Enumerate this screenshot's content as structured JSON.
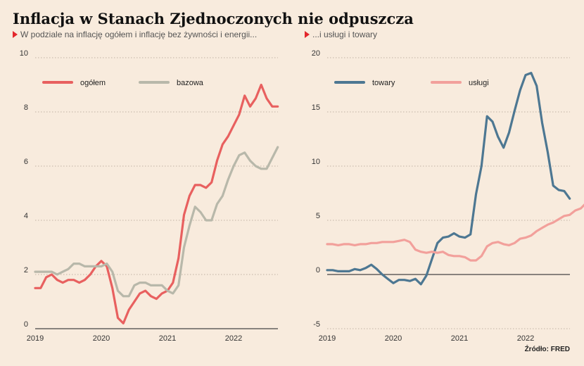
{
  "title": "Inflacja w Stanach Zjednoczonych nie odpuszcza",
  "subtitles": {
    "left": "W podziale na inflację ogółem i inflację bez żywności i energii...",
    "right": "...i usługi i towary"
  },
  "source": "Źródło: FRED",
  "chart_data": [
    {
      "type": "line",
      "ylim": [
        0,
        10
      ],
      "y_ticks": [
        "0",
        "2",
        "4",
        "6",
        "8",
        "10"
      ],
      "x_ticks": [
        {
          "label": "2019",
          "x": 2019.0
        },
        {
          "label": "2020",
          "x": 2020.0
        },
        {
          "label": "2021",
          "x": 2021.0
        },
        {
          "label": "2022",
          "x": 2022.0
        }
      ],
      "xlim": [
        2019.0,
        2022.67
      ],
      "grid": true,
      "legend": "top-left",
      "series": [
        {
          "name": "ogółem",
          "color": "#e8605f",
          "x_start": 2019.0,
          "step_months": 1,
          "values": [
            1.5,
            1.5,
            1.9,
            2.0,
            1.8,
            1.7,
            1.8,
            1.8,
            1.7,
            1.8,
            2.0,
            2.3,
            2.5,
            2.3,
            1.5,
            0.4,
            0.2,
            0.7,
            1.0,
            1.3,
            1.4,
            1.2,
            1.1,
            1.3,
            1.4,
            1.7,
            2.6,
            4.2,
            4.9,
            5.3,
            5.3,
            5.2,
            5.4,
            6.2,
            6.8,
            7.1,
            7.5,
            7.9,
            8.6,
            8.2,
            8.5,
            9.0,
            8.5,
            8.2,
            8.2
          ]
        },
        {
          "name": "bazowa",
          "color": "#b8b8aa",
          "x_start": 2019.0,
          "step_months": 1,
          "values": [
            2.1,
            2.1,
            2.1,
            2.1,
            2.0,
            2.1,
            2.2,
            2.4,
            2.4,
            2.3,
            2.3,
            2.3,
            2.3,
            2.4,
            2.1,
            1.4,
            1.2,
            1.2,
            1.6,
            1.7,
            1.7,
            1.6,
            1.6,
            1.6,
            1.4,
            1.3,
            1.6,
            3.0,
            3.8,
            4.5,
            4.3,
            4.0,
            4.0,
            4.6,
            4.9,
            5.5,
            6.0,
            6.4,
            6.5,
            6.2,
            6.0,
            5.9,
            5.9,
            6.3,
            6.7
          ]
        }
      ]
    },
    {
      "type": "line",
      "ylim": [
        -5,
        20
      ],
      "y_ticks": [
        "-5",
        "0",
        "5",
        "10",
        "15",
        "20"
      ],
      "x_ticks": [
        {
          "label": "2019",
          "x": 2019.0
        },
        {
          "label": "2020",
          "x": 2020.0
        },
        {
          "label": "2021",
          "x": 2021.0
        },
        {
          "label": "2022",
          "x": 2022.0
        }
      ],
      "xlim": [
        2019.0,
        2022.67
      ],
      "grid": true,
      "legend": "top-left",
      "series": [
        {
          "name": "towary",
          "color": "#4d7792",
          "x_start": 2019.0,
          "step_months": 1,
          "values": [
            0.4,
            0.4,
            0.3,
            0.3,
            0.3,
            0.5,
            0.4,
            0.6,
            0.9,
            0.5,
            0.0,
            -0.4,
            -0.8,
            -0.5,
            -0.5,
            -0.6,
            -0.4,
            -0.9,
            -0.1,
            1.4,
            2.9,
            3.4,
            3.5,
            3.8,
            3.5,
            3.4,
            3.7,
            7.4,
            10.0,
            14.6,
            14.1,
            12.7,
            11.7,
            13.1,
            15.1,
            17.0,
            18.4,
            18.6,
            17.4,
            14.0,
            11.3,
            8.2,
            7.8,
            7.7,
            7.0
          ]
        },
        {
          "name": "usługi",
          "color": "#f2a09b",
          "x_start": 2019.0,
          "step_months": 1,
          "values": [
            2.8,
            2.8,
            2.7,
            2.8,
            2.8,
            2.7,
            2.8,
            2.8,
            2.9,
            2.9,
            3.0,
            3.0,
            3.0,
            3.1,
            3.2,
            3.0,
            2.3,
            2.1,
            2.0,
            2.1,
            2.0,
            2.1,
            1.8,
            1.7,
            1.7,
            1.6,
            1.3,
            1.3,
            1.7,
            2.6,
            2.9,
            3.0,
            2.8,
            2.7,
            2.9,
            3.3,
            3.4,
            3.6,
            4.0,
            4.3,
            4.6,
            4.8,
            5.1,
            5.4,
            5.5,
            5.9,
            6.1,
            6.6
          ]
        }
      ]
    }
  ]
}
